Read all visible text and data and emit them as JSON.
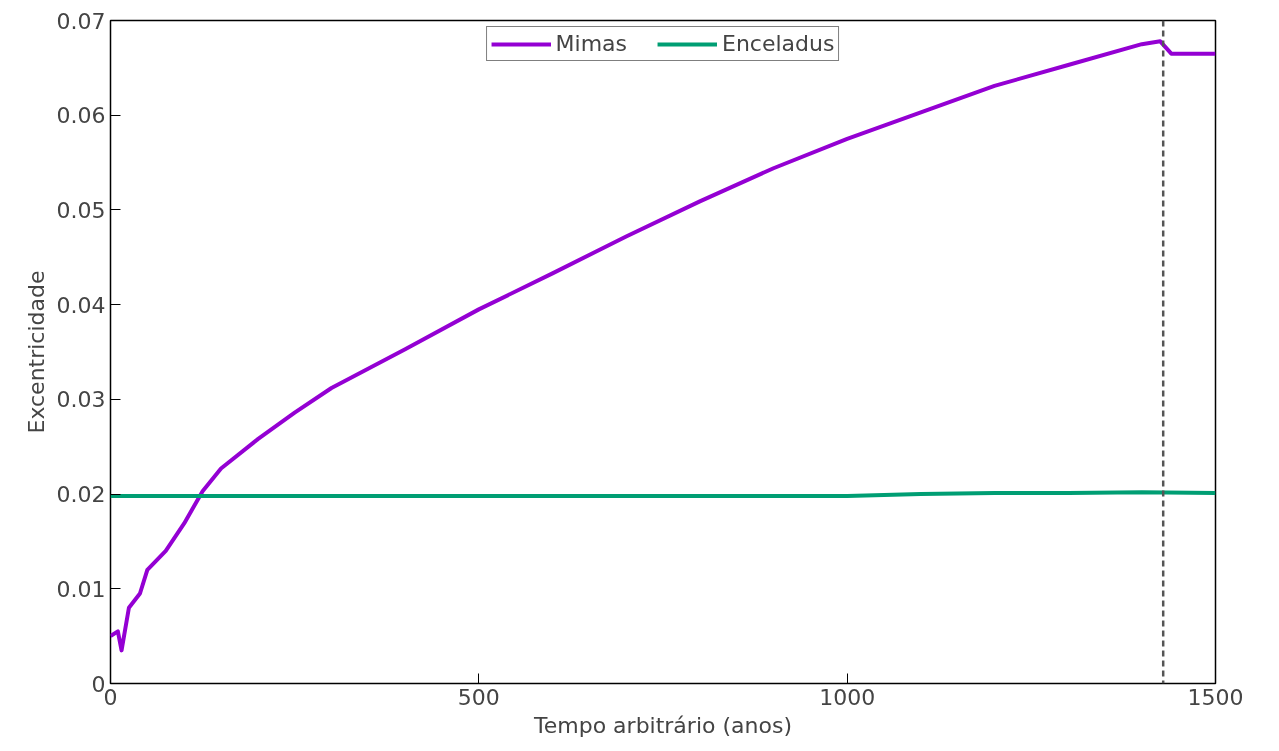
{
  "chart_data": {
    "type": "line",
    "xlabel": "Tempo arbitrário (anos)",
    "ylabel": "Excentricidade",
    "xlim": [
      0,
      1500
    ],
    "xticks": [
      0,
      500,
      1000,
      1500
    ],
    "ylim": [
      0,
      0.07
    ],
    "yticks": [
      0,
      0.01,
      0.02,
      0.03,
      0.04,
      0.05,
      0.06,
      0.07
    ],
    "grid": false,
    "legend": "top",
    "line_style": "solid",
    "marker": "none",
    "series": [
      {
        "name": "Mimas",
        "color": "#9400d3",
        "x": [
          0,
          10,
          15,
          25,
          40,
          50,
          75,
          100,
          125,
          150,
          200,
          250,
          300,
          400,
          500,
          600,
          700,
          800,
          900,
          1000,
          1100,
          1200,
          1300,
          1400,
          1425,
          1440,
          1500
        ],
        "values": [
          0.005,
          0.0055,
          0.0035,
          0.008,
          0.0095,
          0.012,
          0.014,
          0.0169,
          0.0203,
          0.0227,
          0.0258,
          0.0286,
          0.0312,
          0.0353,
          0.0395,
          0.0433,
          0.0472,
          0.0509,
          0.0544,
          0.0575,
          0.0603,
          0.0631,
          0.0653,
          0.0675,
          0.0678,
          0.0665,
          0.0665
        ]
      },
      {
        "name": "Enceladus",
        "color": "#009e73",
        "x": [
          0,
          250,
          500,
          750,
          1000,
          1100,
          1200,
          1300,
          1400,
          1500
        ],
        "values": [
          0.0198,
          0.0198,
          0.0198,
          0.0198,
          0.0198,
          0.02,
          0.0201,
          0.0201,
          0.0202,
          0.0201
        ]
      }
    ],
    "ref_lines": [
      {
        "axis": "x",
        "value": 1429,
        "color": "#555555",
        "line_style": "dashed"
      }
    ]
  }
}
